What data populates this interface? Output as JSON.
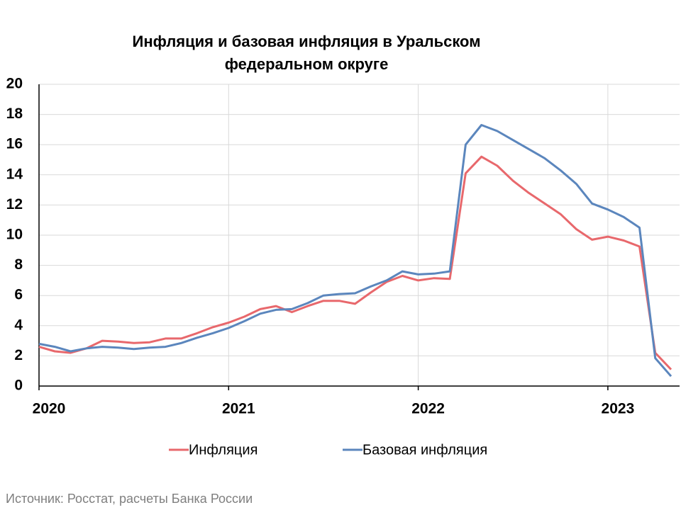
{
  "chart_data": {
    "type": "line",
    "title": [
      "Инфляция и базовая инфляция в Уральском",
      "федеральном округе"
    ],
    "categories": [
      "2020",
      null,
      null,
      null,
      null,
      null,
      null,
      null,
      null,
      null,
      null,
      null,
      "2021",
      null,
      null,
      null,
      null,
      null,
      null,
      null,
      null,
      null,
      null,
      null,
      "2022",
      null,
      null,
      null,
      null,
      null,
      null,
      null,
      null,
      null,
      null,
      null,
      "2023",
      null,
      null,
      null,
      null
    ],
    "series": [
      {
        "name": "Инфляция",
        "color": "#e8686c",
        "values": [
          2.6,
          2.3,
          2.2,
          2.5,
          3.0,
          2.95,
          2.85,
          2.9,
          3.15,
          3.15,
          3.5,
          3.9,
          4.2,
          4.6,
          5.1,
          5.3,
          4.9,
          5.3,
          5.65,
          5.65,
          5.45,
          6.2,
          6.9,
          7.3,
          7.0,
          7.15,
          7.1,
          14.1,
          15.2,
          14.6,
          13.6,
          12.8,
          12.1,
          11.4,
          10.4,
          9.7,
          9.9,
          9.65,
          9.25,
          2.2,
          1.1
        ]
      },
      {
        "name": "Базовая инфляция",
        "color": "#5b86bd",
        "values": [
          2.8,
          2.6,
          2.3,
          2.5,
          2.6,
          2.55,
          2.45,
          2.55,
          2.6,
          2.85,
          3.2,
          3.5,
          3.85,
          4.3,
          4.8,
          5.05,
          5.1,
          5.5,
          6.0,
          6.1,
          6.15,
          6.6,
          7.0,
          7.6,
          7.4,
          7.45,
          7.6,
          16.0,
          17.3,
          16.9,
          16.3,
          15.7,
          15.1,
          14.3,
          13.4,
          12.1,
          11.7,
          11.2,
          10.5,
          1.85,
          0.65
        ]
      }
    ],
    "ylim": [
      0,
      20
    ],
    "yticks": [
      0,
      2,
      4,
      6,
      8,
      10,
      12,
      14,
      16,
      18,
      20
    ],
    "grid": true,
    "legend": "bottom",
    "source": "Источник: Росстат, расчеты Банка России"
  }
}
